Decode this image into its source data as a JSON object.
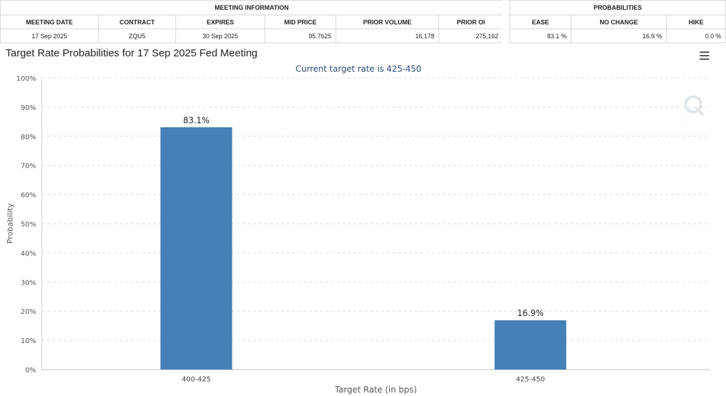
{
  "meeting_info": {
    "section_label": "MEETING INFORMATION",
    "headers": [
      "MEETING DATE",
      "CONTRACT",
      "EXPIRES",
      "MID PRICE",
      "PRIOR VOLUME",
      "PRIOR OI"
    ],
    "row": [
      "17 Sep 2025",
      "ZQU5",
      "30 Sep 2025",
      "95.7625",
      "16,178",
      "275,162"
    ]
  },
  "probabilities": {
    "section_label": "PROBABILITIES",
    "headers": [
      "EASE",
      "NO CHANGE",
      "HIKE"
    ],
    "row": [
      "83.1 %",
      "16.9 %",
      "0.0 %"
    ]
  },
  "chart_data": {
    "type": "bar",
    "title": "Target Rate Probabilities for 17 Sep 2025 Fed Meeting",
    "subtitle": "Current target rate is 425-450",
    "categories": [
      "400-425",
      "425-450"
    ],
    "values": [
      83.1,
      16.9
    ],
    "data_labels": [
      "83.1%",
      "16.9%"
    ],
    "xlabel": "Target Rate (in bps)",
    "ylabel": "Probability",
    "ylim": [
      0,
      100
    ],
    "yticks": [
      0,
      10,
      20,
      30,
      40,
      50,
      60,
      70,
      80,
      90,
      100
    ],
    "ytick_labels": [
      "0%",
      "10%",
      "20%",
      "30%",
      "40%",
      "50%",
      "60%",
      "70%",
      "80%",
      "90%",
      "100%"
    ],
    "grid": true,
    "bar_color": "#4580b6",
    "subtitle_color": "#2e4a73"
  },
  "icons": {
    "menu": "hamburger-menu-icon",
    "watermark": "q-logo-watermark"
  }
}
